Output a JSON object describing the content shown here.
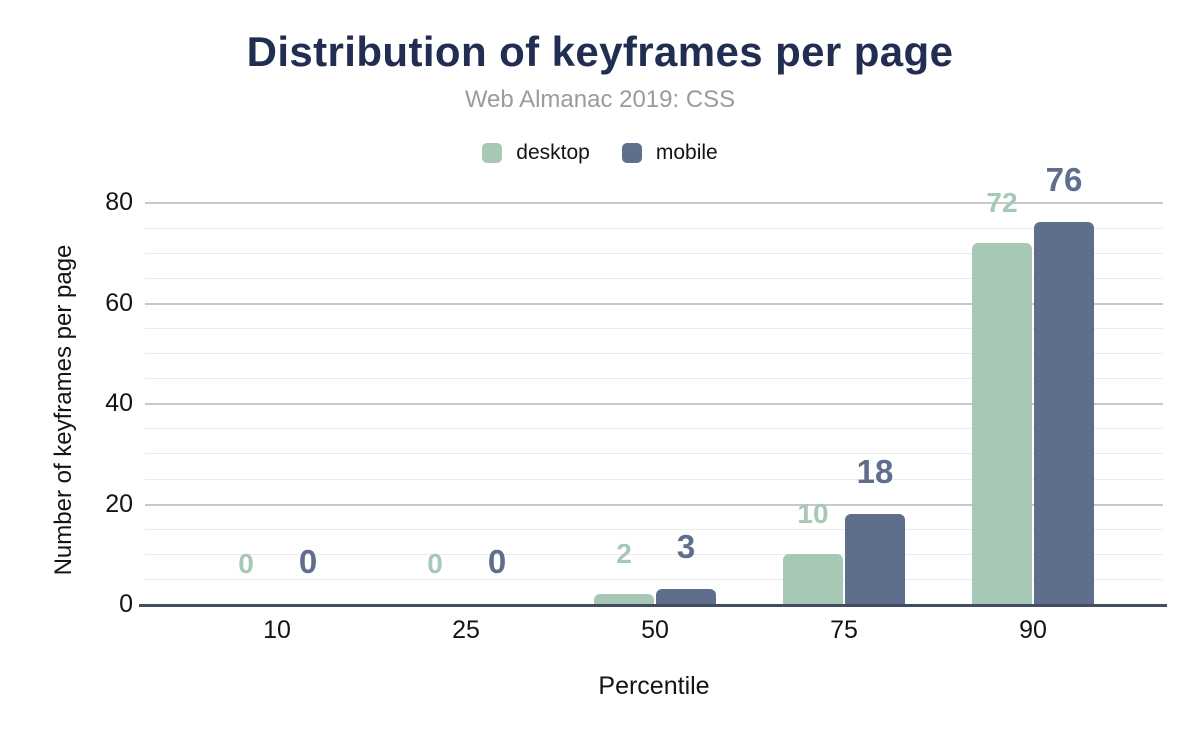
{
  "chart_data": {
    "type": "bar",
    "title": "Distribution of keyframes per page",
    "subtitle": "Web Almanac 2019: CSS",
    "xlabel": "Percentile",
    "ylabel": "Number of keyframes per page",
    "categories": [
      "10",
      "25",
      "50",
      "75",
      "90"
    ],
    "series": [
      {
        "name": "desktop",
        "color": "#a6c8b5",
        "values": [
          0,
          0,
          2,
          10,
          72
        ]
      },
      {
        "name": "mobile",
        "color": "#5f6e8c",
        "values": [
          0,
          0,
          3,
          18,
          76
        ]
      }
    ],
    "ylim": [
      0,
      85
    ],
    "yticks": [
      0,
      20,
      40,
      60,
      80
    ],
    "minor_grid_step": 5,
    "grid": true,
    "legend_position": "top"
  },
  "colors": {
    "title": "#212d51",
    "subtitle": "#9b9b9b",
    "axis_text": "#141414",
    "baseline": "#434c60",
    "grid_major": "#c8c8c8",
    "grid_minor": "#ebebeb",
    "background": "#ffffff"
  }
}
